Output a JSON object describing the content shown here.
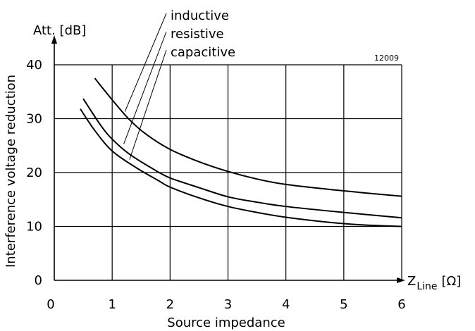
{
  "chart_data": {
    "type": "line",
    "figure_id": "12009",
    "ylabel_top": "Att. [dB]",
    "ylabel": "Interference voltage reduction",
    "xlabel": "Source impedance",
    "x_axis_label": {
      "main": "Z",
      "subscript": "Line",
      "unit": "[Ω]"
    },
    "xlim": [
      0,
      6
    ],
    "ylim": [
      0,
      40
    ],
    "x_ticks": [
      "0",
      "1",
      "2",
      "3",
      "4",
      "5",
      "6"
    ],
    "y_ticks": [
      "0",
      "10",
      "20",
      "30",
      "40"
    ],
    "x_tick_values": [
      0,
      1,
      2,
      3,
      4,
      5,
      6
    ],
    "y_tick_values": [
      0,
      10,
      20,
      30,
      40
    ],
    "grid": true,
    "series": [
      {
        "name": "inductive",
        "x": [
          0.7,
          1.0,
          1.3,
          1.6,
          2.0,
          2.5,
          3.0,
          3.5,
          4.0,
          5.0,
          6.0
        ],
        "y": [
          37.5,
          33.5,
          29.8,
          27.0,
          24.3,
          22.0,
          20.2,
          18.8,
          17.8,
          16.6,
          15.6
        ],
        "pointer": {
          "x": 1.22,
          "y": 31.3
        }
      },
      {
        "name": "resistive",
        "x": [
          0.5,
          0.8,
          1.0,
          1.3,
          1.7,
          2.0,
          2.5,
          3.0,
          3.5,
          4.0,
          5.0,
          6.0
        ],
        "y": [
          33.7,
          28.8,
          26.2,
          23.4,
          20.7,
          19.0,
          17.2,
          15.5,
          14.5,
          13.7,
          12.6,
          11.6
        ],
        "pointer": {
          "x": 1.2,
          "y": 25.3
        }
      },
      {
        "name": "capacitive",
        "x": [
          0.45,
          0.7,
          1.0,
          1.4,
          1.8,
          2.0,
          2.5,
          3.0,
          3.5,
          4.0,
          4.8,
          5.3,
          6.0
        ],
        "y": [
          31.8,
          27.8,
          24.0,
          21.0,
          18.5,
          17.3,
          15.3,
          13.7,
          12.6,
          11.7,
          10.7,
          10.3,
          10.0
        ],
        "pointer": {
          "x": 1.3,
          "y": 22.4
        }
      }
    ]
  }
}
